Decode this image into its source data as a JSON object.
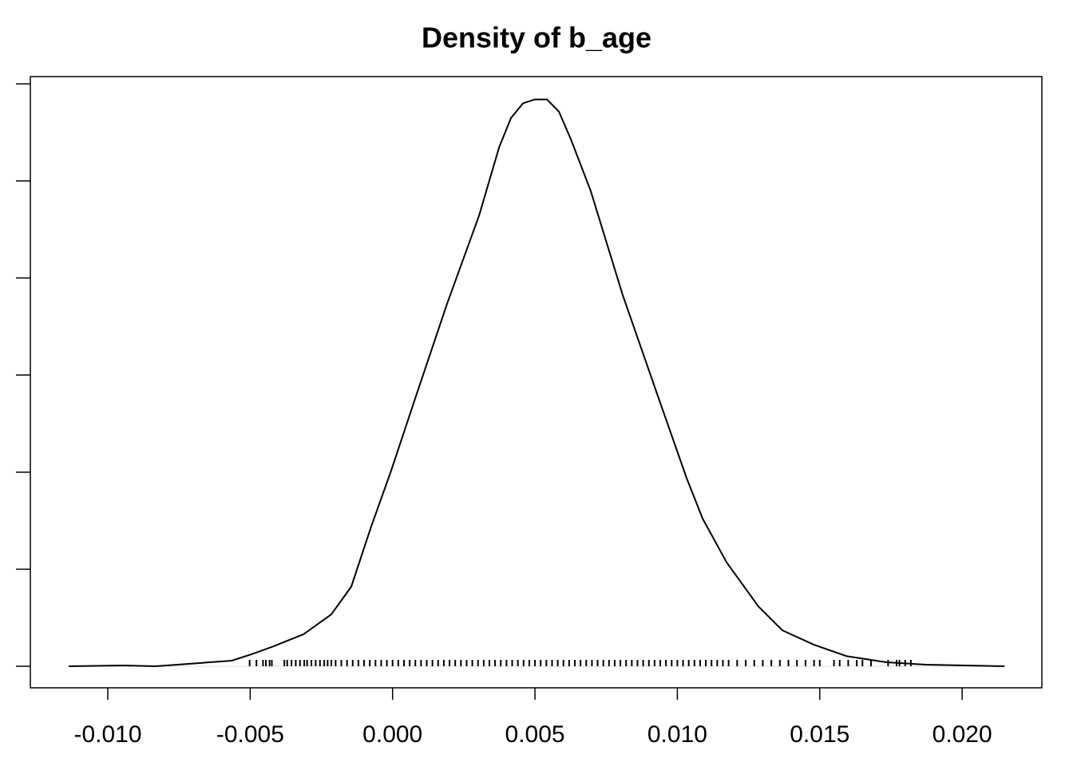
{
  "chart_data": {
    "type": "density",
    "title": "Density of b_age",
    "x": [
      -0.01137,
      -0.00944,
      -0.00832,
      -0.00678,
      -0.00565,
      -0.00495,
      -0.00425,
      -0.00313,
      -0.00215,
      -0.00145,
      -0.00075,
      -5e-05,
      0.00079,
      0.00192,
      0.00304,
      0.00374,
      0.00416,
      0.00458,
      0.005,
      0.00542,
      0.00584,
      0.00626,
      0.00696,
      0.00808,
      0.00935,
      0.01033,
      0.01089,
      0.01173,
      0.01285,
      0.01369,
      0.01481,
      0.01593,
      0.01734,
      0.01874,
      0.02149
    ],
    "y": [
      0,
      0.16,
      0,
      0.66,
      1.15,
      2.47,
      3.95,
      6.58,
      10.7,
      16.4,
      28.8,
      40.3,
      55.1,
      74.8,
      92.9,
      106.9,
      113.0,
      116.0,
      116.8,
      116.8,
      114.3,
      108.6,
      97.9,
      76.5,
      55.1,
      38.7,
      30.4,
      21.4,
      12.3,
      7.4,
      4.4,
      2.1,
      0.82,
      0.33,
      0
    ],
    "rug": [
      -0.00502,
      -0.00478,
      -0.00455,
      -0.00445,
      -0.00432,
      -0.00424,
      -0.0038,
      -0.0037,
      -0.00355,
      -0.0034,
      -0.00325,
      -0.0031,
      -0.003,
      -0.00285,
      -0.0027,
      -0.00255,
      -0.0024,
      -0.00228,
      -0.00215,
      -0.002,
      -0.0018,
      -0.0016,
      -0.0014,
      -0.0012,
      -0.001,
      -0.0008,
      -0.0006,
      -0.0004,
      -0.0002,
      0,
      0.0002,
      0.0004,
      0.0006,
      0.0008,
      0.001,
      0.0012,
      0.0014,
      0.0016,
      0.0018,
      0.002,
      0.0022,
      0.0024,
      0.0026,
      0.0028,
      0.003,
      0.0032,
      0.0034,
      0.0036,
      0.0038,
      0.004,
      0.0042,
      0.0044,
      0.0046,
      0.0048,
      0.005,
      0.0052,
      0.0054,
      0.0056,
      0.0058,
      0.006,
      0.0062,
      0.0064,
      0.0066,
      0.0068,
      0.007,
      0.0072,
      0.0074,
      0.0076,
      0.0078,
      0.008,
      0.0082,
      0.0084,
      0.0086,
      0.0088,
      0.009,
      0.0092,
      0.0094,
      0.0096,
      0.0098,
      0.01,
      0.0102,
      0.0104,
      0.0106,
      0.0108,
      0.011,
      0.0112,
      0.0114,
      0.0116,
      0.0118,
      0.0121,
      0.0124,
      0.0127,
      0.013,
      0.0133,
      0.0136,
      0.0139,
      0.0142,
      0.0145,
      0.0148,
      0.015,
      0.0155,
      0.0157,
      0.016,
      0.0163,
      0.0165,
      0.0168,
      0.0174,
      0.0177,
      0.0178,
      0.018,
      0.0182
    ],
    "color": "#000000",
    "xlim": [
      -0.01272,
      0.0228
    ],
    "xticks": [
      {
        "value": -0.01,
        "label": "-0.010"
      },
      {
        "value": -0.005,
        "label": "-0.005"
      },
      {
        "value": 0,
        "label": "0.000"
      },
      {
        "value": 0.005,
        "label": "0.005"
      },
      {
        "value": 0.01,
        "label": "0.010"
      },
      {
        "value": 0.015,
        "label": "0.015"
      },
      {
        "value": 0.02,
        "label": "0.020"
      }
    ],
    "ylim": [
      -4.44,
      121.5
    ],
    "yticks": [
      0,
      20,
      40,
      60,
      80,
      100,
      120
    ]
  }
}
